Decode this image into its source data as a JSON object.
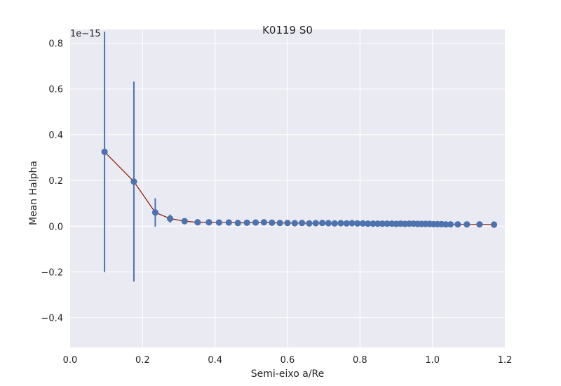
{
  "chart_data": {
    "type": "scatter",
    "title": "K0119 S0",
    "xlabel": "Semi-eixo a/Re",
    "ylabel": "Mean Halpha",
    "offset_text": "1e−15",
    "xlim": [
      0.0,
      1.2
    ],
    "ylim": [
      -0.53,
      0.86
    ],
    "x_ticks": [
      0.0,
      0.2,
      0.4,
      0.6,
      0.8,
      1.0,
      1.2
    ],
    "x_tick_labels": [
      "0.0",
      "0.2",
      "0.4",
      "0.6",
      "0.8",
      "1.0",
      "1.2"
    ],
    "y_ticks": [
      -0.4,
      -0.2,
      0.0,
      0.2,
      0.4,
      0.6,
      0.8
    ],
    "y_tick_labels": [
      "−0.4",
      "−0.2",
      "0.0",
      "0.2",
      "0.4",
      "0.6",
      "0.8"
    ],
    "grid": true,
    "colors": {
      "background": "#EAEAF2",
      "grid": "#FFFFFF",
      "marker": "#4C72B0",
      "errorbar": "#4C72B0",
      "line": "#8B1A00"
    },
    "series": [
      {
        "x": [
          0.095,
          0.176,
          0.235,
          0.276,
          0.316,
          0.352,
          0.383,
          0.411,
          0.438,
          0.463,
          0.488,
          0.512,
          0.535,
          0.557,
          0.579,
          0.6,
          0.62,
          0.64,
          0.66,
          0.678,
          0.696,
          0.713,
          0.73,
          0.747,
          0.763,
          0.778,
          0.793,
          0.808,
          0.822,
          0.836,
          0.849,
          0.862,
          0.875,
          0.888,
          0.9,
          0.912,
          0.924,
          0.936,
          0.948,
          0.959,
          0.97,
          0.981,
          0.992,
          1.003,
          1.014,
          1.025,
          1.037,
          1.05,
          1.07,
          1.095,
          1.13,
          1.17
        ],
        "y": [
          0.325,
          0.195,
          0.06,
          0.033,
          0.022,
          0.017,
          0.017,
          0.016,
          0.016,
          0.014,
          0.015,
          0.016,
          0.017,
          0.015,
          0.014,
          0.014,
          0.013,
          0.014,
          0.012,
          0.013,
          0.014,
          0.013,
          0.012,
          0.013,
          0.012,
          0.013,
          0.012,
          0.012,
          0.011,
          0.011,
          0.011,
          0.011,
          0.011,
          0.011,
          0.01,
          0.011,
          0.01,
          0.011,
          0.011,
          0.01,
          0.01,
          0.01,
          0.01,
          0.009,
          0.009,
          0.009,
          0.008,
          0.008,
          0.008,
          0.008,
          0.008,
          0.007
        ],
        "yerr": [
          0.525,
          0.437,
          0.062,
          0.018,
          0.005,
          0.004,
          0.003,
          0.003,
          0.003,
          0.003,
          0.003,
          0.003,
          0.003,
          0.003,
          0.003,
          0.003,
          0.003,
          0.003,
          0.003,
          0.003,
          0.003,
          0.003,
          0.003,
          0.003,
          0.003,
          0.003,
          0.003,
          0.003,
          0.003,
          0.003,
          0.003,
          0.003,
          0.003,
          0.003,
          0.003,
          0.003,
          0.003,
          0.003,
          0.003,
          0.003,
          0.003,
          0.003,
          0.003,
          0.003,
          0.003,
          0.003,
          0.003,
          0.003,
          0.003,
          0.003,
          0.003,
          0.003
        ]
      }
    ]
  }
}
